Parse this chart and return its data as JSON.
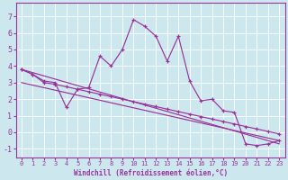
{
  "xlabel": "Windchill (Refroidissement éolien,°C)",
  "bg_color": "#cce8ee",
  "line_color": "#993399",
  "xlim": [
    -0.5,
    23.5
  ],
  "ylim": [
    -1.5,
    7.8
  ],
  "xticks": [
    0,
    1,
    2,
    3,
    4,
    5,
    6,
    7,
    8,
    9,
    10,
    11,
    12,
    13,
    14,
    15,
    16,
    17,
    18,
    19,
    20,
    21,
    22,
    23
  ],
  "yticks": [
    -1,
    0,
    1,
    2,
    3,
    4,
    5,
    6,
    7
  ],
  "line1_x": [
    0,
    1,
    2,
    3,
    4,
    5,
    6,
    7,
    8,
    9,
    10,
    11,
    12,
    13,
    14,
    15,
    16,
    17,
    18,
    19,
    20,
    21,
    22,
    23
  ],
  "line1_y": [
    3.8,
    3.5,
    3.1,
    3.0,
    1.5,
    2.6,
    2.7,
    4.6,
    4.0,
    5.0,
    6.8,
    6.4,
    5.8,
    4.3,
    5.8,
    3.1,
    1.9,
    2.0,
    1.3,
    1.2,
    -0.7,
    -0.8,
    -0.7,
    -0.5
  ],
  "line2_x": [
    0,
    23
  ],
  "line2_y": [
    3.8,
    -0.7
  ],
  "line3_x": [
    0,
    23
  ],
  "line3_y": [
    3.0,
    -0.5
  ],
  "marker_line2_x": [
    0,
    1,
    2,
    3,
    4,
    5,
    6,
    7,
    8,
    9,
    10,
    11,
    12,
    13,
    14,
    15,
    16,
    17,
    18,
    19,
    20,
    21,
    22,
    23
  ],
  "marker_line2_y": [
    3.8,
    3.5,
    3.0,
    2.9,
    2.75,
    2.6,
    2.45,
    2.3,
    2.15,
    2.0,
    1.85,
    1.7,
    1.55,
    1.4,
    1.25,
    1.1,
    0.95,
    0.8,
    0.65,
    0.5,
    0.35,
    0.2,
    0.05,
    -0.1
  ]
}
